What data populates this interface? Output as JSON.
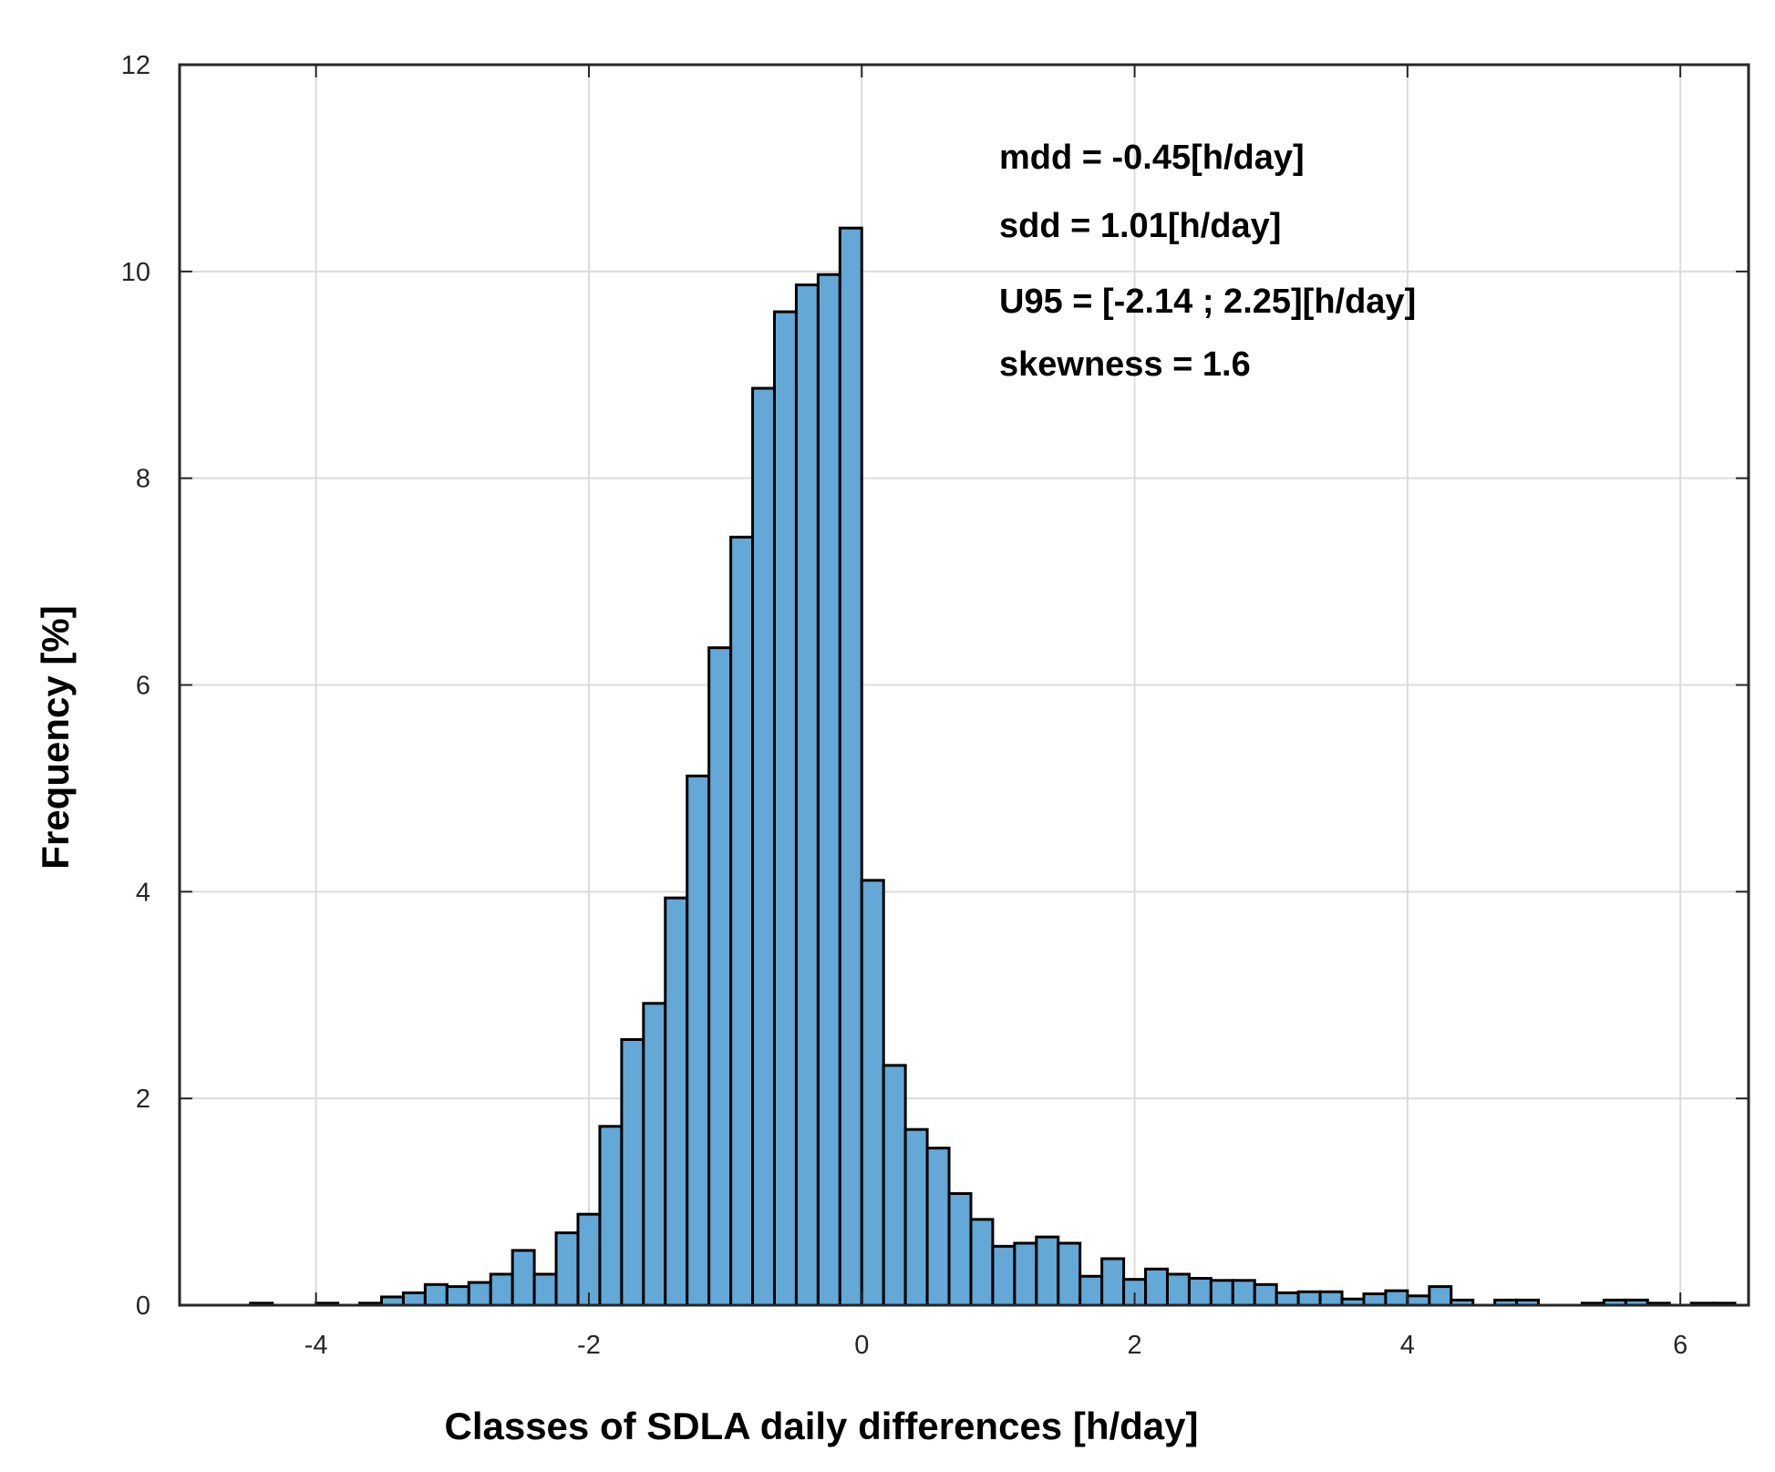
{
  "chart_data": {
    "type": "bar",
    "subtype": "histogram",
    "xlabel": "Classes of SDLA daily differences [h/day]",
    "ylabel": "Frequency [%]",
    "xlim": [
      -5,
      6.5
    ],
    "ylim": [
      0,
      12
    ],
    "xticks": [
      -4,
      -2,
      0,
      2,
      4,
      6
    ],
    "xtick_labels": [
      "-4",
      "-2",
      "0",
      "2",
      "4",
      "6"
    ],
    "yticks": [
      0,
      2,
      4,
      6,
      8,
      10,
      12
    ],
    "ytick_labels": [
      "0",
      "2",
      "4",
      "6",
      "8",
      "10",
      "12"
    ],
    "grid": true,
    "bin_width": 0.16,
    "bin_start": -4.48,
    "values": [
      0.02,
      0,
      0,
      0.02,
      0,
      0.02,
      0.08,
      0.12,
      0.2,
      0.18,
      0.22,
      0.3,
      0.53,
      0.3,
      0.7,
      0.88,
      1.73,
      2.57,
      2.92,
      3.94,
      5.12,
      6.36,
      7.43,
      8.87,
      9.61,
      9.87,
      9.97,
      10.42,
      4.11,
      2.32,
      1.7,
      1.52,
      1.08,
      0.83,
      0.57,
      0.6,
      0.66,
      0.6,
      0.28,
      0.45,
      0.25,
      0.35,
      0.3,
      0.26,
      0.24,
      0.24,
      0.2,
      0.12,
      0.13,
      0.13,
      0.06,
      0.11,
      0.14,
      0.09,
      0.18,
      0.05,
      0,
      0.05,
      0.05,
      0,
      0,
      0.02,
      0.05,
      0.05,
      0.02,
      0,
      0.02,
      0.02
    ],
    "bar_color": "#63a8d6",
    "edge_color": "#000000",
    "annotations": [
      "mdd = -0.45[h/day]",
      "sdd = 1.01[h/day]",
      "U95 = [-2.14 ; 2.25][h/day]",
      "skewness = 1.6"
    ]
  }
}
